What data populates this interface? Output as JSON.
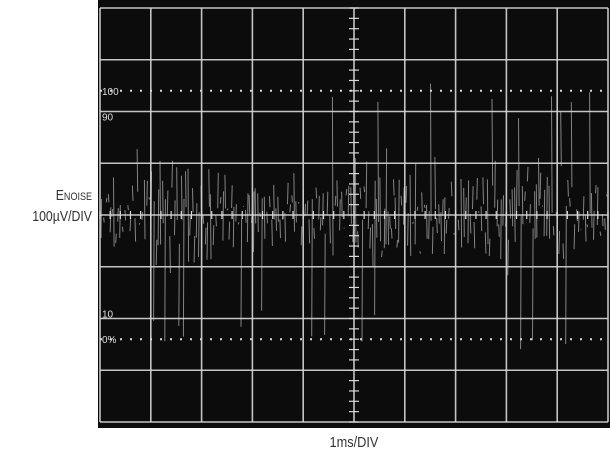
{
  "chart_data": {
    "type": "oscilloscope",
    "ylabel_main": "E",
    "ylabel_sub": "NOISE",
    "ylabel_scale": "100µV/DIV",
    "xlabel": "1ms/DIV",
    "graticule": {
      "h_divisions": 10,
      "v_divisions": 8
    },
    "graticule_labels": [
      "100",
      "90",
      "10",
      "0%"
    ],
    "trace": {
      "description_level": "noise",
      "center_div": 4,
      "rms_div": 0.95,
      "peak_div": 2.6
    },
    "colors": {
      "screen": "#101010",
      "grid": "#d8d8d8",
      "trace": "#e8e8e8"
    }
  }
}
